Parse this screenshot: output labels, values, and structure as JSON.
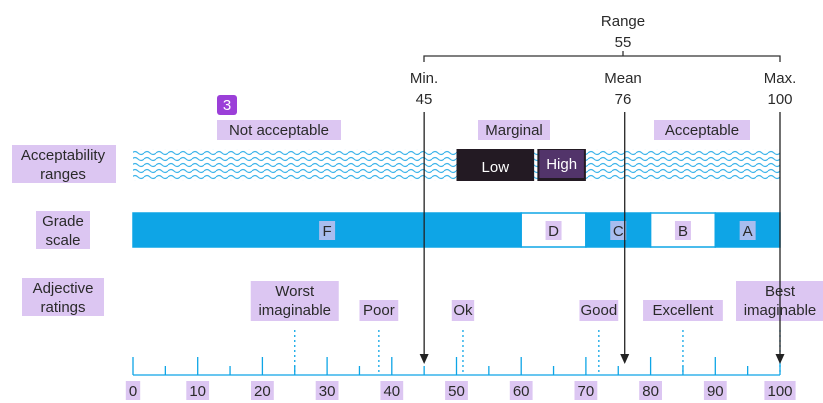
{
  "badge": "3",
  "range": {
    "title": "Range",
    "value": "55"
  },
  "min": {
    "label": "Min.",
    "value": "45",
    "pos": 45
  },
  "mean": {
    "label": "Mean",
    "value": "76",
    "pos": 76
  },
  "max": {
    "label": "Max.",
    "value": "100",
    "pos": 100
  },
  "row_labels": {
    "acceptability": [
      "Acceptability",
      "ranges"
    ],
    "grade": [
      "Grade",
      "scale"
    ],
    "adjective": [
      "Adjective",
      "ratings"
    ]
  },
  "acceptability": {
    "not_acceptable": "Not acceptable",
    "marginal": "Marginal",
    "acceptable": "Acceptable",
    "low": "Low",
    "high": "High",
    "low_range": [
      50,
      62
    ],
    "high_range": [
      62.5,
      70
    ]
  },
  "grades": [
    {
      "label": "F",
      "from": 0,
      "to": 60,
      "fill": "blue"
    },
    {
      "label": "D",
      "from": 60,
      "to": 70,
      "fill": "white"
    },
    {
      "label": "C",
      "from": 70,
      "to": 80,
      "fill": "blue"
    },
    {
      "label": "B",
      "from": 80,
      "to": 90,
      "fill": "white"
    },
    {
      "label": "A",
      "from": 90,
      "to": 100,
      "fill": "blue"
    }
  ],
  "adjectives": [
    {
      "lines": [
        "Worst",
        "imaginable"
      ],
      "pos": 25
    },
    {
      "lines": [
        "Poor"
      ],
      "pos": 38
    },
    {
      "lines": [
        "Ok"
      ],
      "pos": 51
    },
    {
      "lines": [
        "Good"
      ],
      "pos": 72
    },
    {
      "lines": [
        "Excellent"
      ],
      "pos": 85
    },
    {
      "lines": [
        "Best",
        "imaginable"
      ],
      "pos": 100
    }
  ],
  "axis": {
    "min": 0,
    "max": 100,
    "labels": [
      "0",
      "10",
      "20",
      "30",
      "40",
      "50",
      "60",
      "70",
      "80",
      "90",
      "100"
    ]
  },
  "colors": {
    "blue": "#0ea5e6",
    "wave": "#3db4ea",
    "dark": "#231a23",
    "highlight": "#dcc6f2",
    "badge": "#9b3fd8"
  }
}
